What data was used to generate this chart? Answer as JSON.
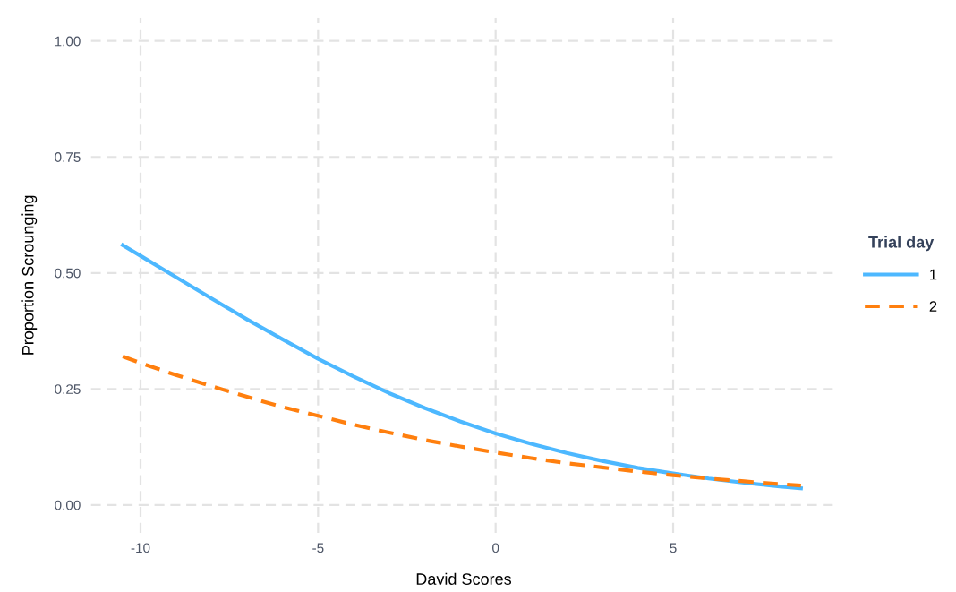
{
  "chart_data": {
    "type": "line",
    "xlabel": "David Scores",
    "ylabel": "Proportion Scrounging",
    "legend_title": "Trial day",
    "x": [
      -10.5,
      -10,
      -9,
      -8,
      -7,
      -6,
      -5,
      -4,
      -3,
      -2,
      -1,
      0,
      1,
      2,
      3,
      4,
      5,
      6,
      7,
      8,
      8.6
    ],
    "series": [
      {
        "name": "1",
        "color": "#4db8ff",
        "line_style": "solid",
        "values": [
          0.56,
          0.537,
          0.491,
          0.445,
          0.4,
          0.357,
          0.315,
          0.277,
          0.241,
          0.209,
          0.18,
          0.154,
          0.132,
          0.112,
          0.095,
          0.08,
          0.068,
          0.057,
          0.048,
          0.04,
          0.036
        ]
      },
      {
        "name": "2",
        "color": "#ff7f0e",
        "line_style": "dashed",
        "values": [
          0.32,
          0.306,
          0.28,
          0.256,
          0.233,
          0.211,
          0.192,
          0.173,
          0.156,
          0.14,
          0.126,
          0.113,
          0.101,
          0.09,
          0.081,
          0.072,
          0.064,
          0.057,
          0.051,
          0.045,
          0.042
        ]
      }
    ],
    "xlim": [
      -11.4,
      9.6
    ],
    "ylim": [
      -0.06,
      1.05
    ],
    "xticks": [
      -10,
      -5,
      0,
      5
    ],
    "yticks": [
      {
        "value": 0,
        "label": "0.00"
      },
      {
        "value": 0.25,
        "label": "0.25"
      },
      {
        "value": 0.5,
        "label": "0.50"
      },
      {
        "value": 0.75,
        "label": "0.75"
      },
      {
        "value": 1,
        "label": "1.00"
      }
    ],
    "grid": true,
    "legend": "right"
  }
}
